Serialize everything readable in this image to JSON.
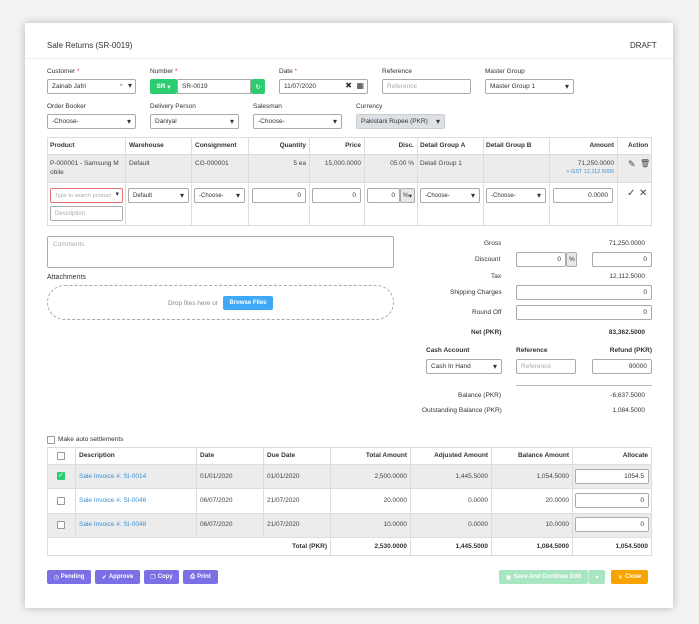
{
  "header": {
    "title": "Sale Returns (SR-0019)",
    "status": "DRAFT"
  },
  "fields": {
    "customer_label": "Customer",
    "customer_value": "Zainab Jafri",
    "number_label": "Number",
    "number_prefix": "SR",
    "number_value": "SR-0019",
    "date_label": "Date",
    "date_value": "11/07/2020",
    "reference_label": "Reference",
    "reference_placeholder": "Reference",
    "master_group_label": "Master Group",
    "master_group_value": "Master Group 1",
    "order_booker_label": "Order Booker",
    "order_booker_value": "-Choose-",
    "delivery_person_label": "Delivery Person",
    "delivery_person_value": "Daniyal",
    "salesman_label": "Salesman",
    "salesman_value": "-Choose-",
    "currency_label": "Currency",
    "currency_value": "Pakistani Rupee (PKR)"
  },
  "items_table": {
    "headers": [
      "Product",
      "Warehouse",
      "Consignment",
      "Quantity",
      "Price",
      "Disc.",
      "Detail Group A",
      "Detail Group B",
      "Amount",
      "Action"
    ],
    "row": {
      "product_line1": "P-000001 - Samsung M",
      "product_line2": "obile",
      "warehouse": "Default",
      "consignment": "CG-000001",
      "quantity": "5 ea",
      "price": "15,000.0000",
      "disc": "05.00 %",
      "group_a": "Detail Group 1",
      "amount": "71,250.0000",
      "gst": "+ GST 12,112.5000"
    },
    "entry": {
      "product_placeholder": "Type to search product",
      "description_placeholder": "Description",
      "warehouse": "Default",
      "consignment": "-Choose-",
      "quantity": "0",
      "price": "0",
      "disc": "0",
      "disc_unit": "%",
      "group_a": "-Choose-",
      "group_b": "-Choose-",
      "amount": "0.0000"
    }
  },
  "comments_placeholder": "Comments",
  "attachments": {
    "label": "Attachments",
    "drop_text": "Drop files here or",
    "browse_label": "Browse Files"
  },
  "totals": {
    "gross_label": "Gross",
    "gross_value": "71,250.0000",
    "discount_label": "Discount",
    "discount_value": "0",
    "discount_unit": "%",
    "discount_amount": "0",
    "tax_label": "Tax",
    "tax_value": "12,112.5000",
    "shipping_label": "Shipping Charges",
    "shipping_value": "0",
    "roundoff_label": "Round Off",
    "roundoff_value": "0",
    "net_label": "Net (PKR)",
    "net_value": "83,362.5000",
    "cash_account_label": "Cash Account",
    "cash_account_value": "Cash In Hand",
    "reference_label": "Reference",
    "reference_placeholder": "Reference",
    "refund_label": "Refund (PKR)",
    "refund_value": "90000",
    "balance_label": "Balance (PKR)",
    "balance_value": "-6,637.5000",
    "outstanding_label": "Outstanding Balance (PKR)",
    "outstanding_value": "1,084.5000"
  },
  "settlements": {
    "auto_label": "Make auto settlements",
    "headers": [
      "Description",
      "Date",
      "Due Date",
      "Total Amount",
      "Adjusted Amount",
      "Balance Amount",
      "Allocate"
    ],
    "rows": [
      {
        "desc": "Sale Invoice #: SI-0014",
        "date": "01/01/2020",
        "due": "01/01/2020",
        "total": "2,500.0000",
        "adjusted": "1,445.5000",
        "balance": "1,054.5000",
        "allocate": "1054.5"
      },
      {
        "desc": "Sale Invoice #: SI-0046",
        "date": "06/07/2020",
        "due": "21/07/2020",
        "total": "20.0000",
        "adjusted": "0.0000",
        "balance": "20.0000",
        "allocate": "0"
      },
      {
        "desc": "Sale Invoice #: SI-0048",
        "date": "06/07/2020",
        "due": "21/07/2020",
        "total": "10.0000",
        "adjusted": "0.0000",
        "balance": "10.0000",
        "allocate": "0"
      }
    ],
    "total_label": "Total (PKR)",
    "total_total": "2,530.0000",
    "total_adjusted": "1,445.5000",
    "total_balance": "1,084.5000",
    "total_allocate": "1,054.5000"
  },
  "footer": {
    "pending": "Pending",
    "approve": "Approve",
    "copy": "Copy",
    "print": "Print",
    "save": "Save And Continue Edit",
    "close": "Close"
  },
  "colors": {
    "accent": "#7b6fe6",
    "success": "#2ecc71",
    "warning": "#f7a400",
    "link": "#3d8fd1"
  }
}
